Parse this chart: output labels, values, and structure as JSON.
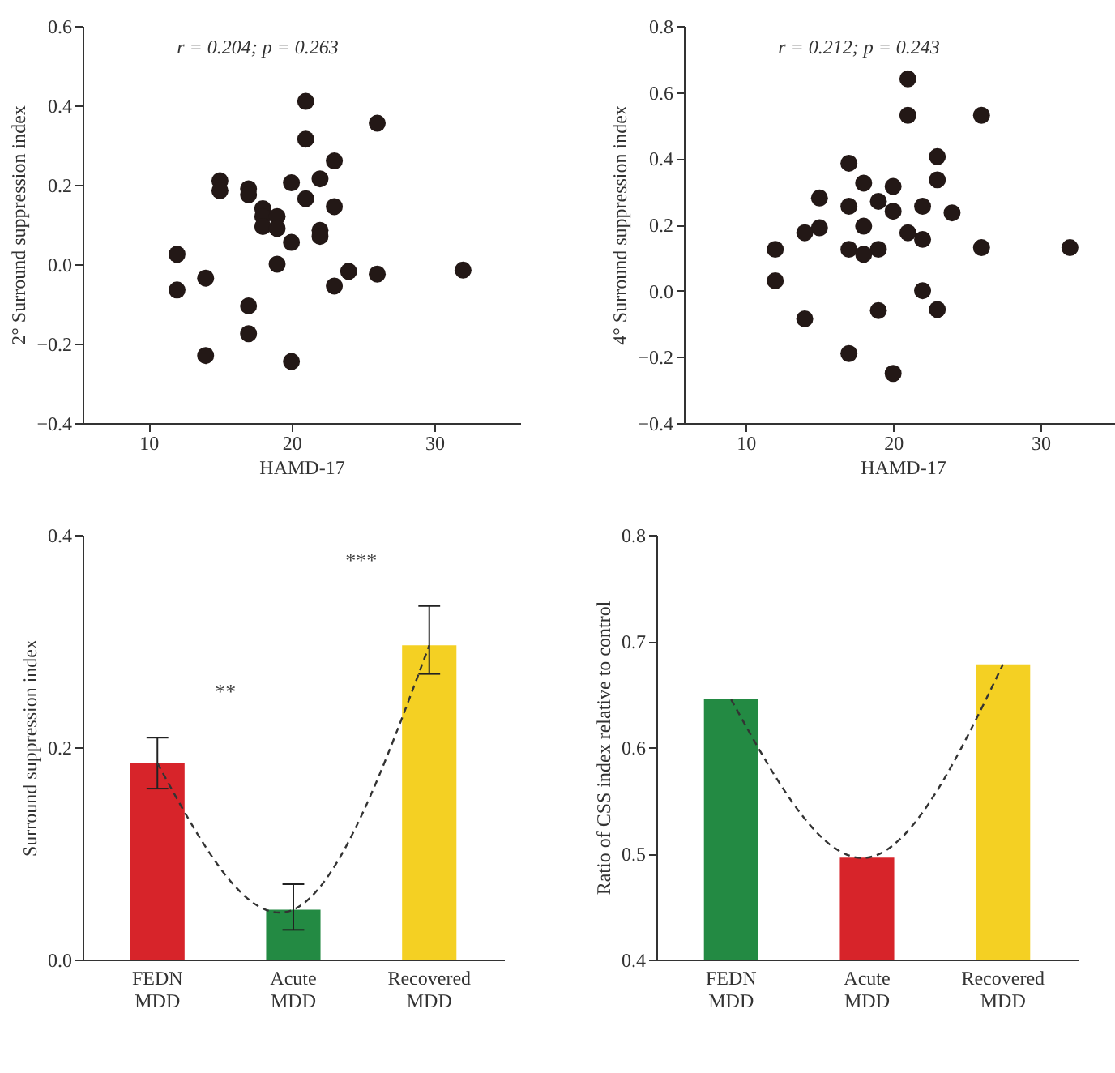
{
  "chart_data": [
    {
      "type": "scatter",
      "xlabel": "HAMD-17",
      "ylabel": "2° Surround suppression index",
      "annotations": [
        "r = 0.204; p = 0.263"
      ],
      "xlim": [
        5.4,
        36
      ],
      "xticks": [
        10,
        20,
        30
      ],
      "ylim": [
        -0.4,
        0.6
      ],
      "yticks": [
        {
          "value": -0.4,
          "label": "−0.4"
        },
        {
          "value": -0.2,
          "label": "−0.2"
        },
        {
          "value": 0,
          "label": "0.0"
        },
        0.2,
        0.4,
        0.6
      ],
      "grid": false,
      "marker": "circle",
      "series": [
        {
          "color": "#231816",
          "x": [
            21,
            26,
            21,
            23,
            22,
            15,
            20,
            15,
            17,
            17,
            21,
            23,
            18,
            18,
            19,
            18,
            19,
            22,
            22,
            20,
            12,
            19,
            24,
            32,
            26,
            14,
            23,
            12,
            17,
            17,
            14,
            20
          ],
          "values": [
            0.41,
            0.355,
            0.315,
            0.26,
            0.215,
            0.21,
            0.205,
            0.185,
            0.19,
            0.175,
            0.165,
            0.145,
            0.14,
            0.12,
            0.12,
            0.095,
            0.09,
            0.085,
            0.07,
            0.055,
            0.025,
            0.0,
            -0.018,
            -0.015,
            -0.025,
            -0.035,
            -0.055,
            -0.065,
            -0.105,
            -0.175,
            -0.23,
            -0.245
          ]
        }
      ]
    },
    {
      "type": "scatter",
      "xlabel": "HAMD-17",
      "ylabel": "4° Surround suppression index",
      "annotations": [
        "r = 0.212; p = 0.243"
      ],
      "xlim": [
        5.8,
        35.5
      ],
      "xticks": [
        10,
        20,
        30
      ],
      "ylim": [
        -0.4,
        0.8
      ],
      "yticks": [
        {
          "value": -0.4,
          "label": "−0.4"
        },
        {
          "value": -0.2,
          "label": "−0.2"
        },
        {
          "value": 0,
          "label": "0.0"
        },
        0.2,
        0.4,
        0.6,
        0.8
      ],
      "grid": false,
      "marker": "circle",
      "series": [
        {
          "color": "#231816",
          "x": [
            21,
            21,
            26,
            23,
            17,
            23,
            18,
            20,
            15,
            19,
            17,
            22,
            20,
            24,
            18,
            15,
            14,
            21,
            22,
            12,
            17,
            19,
            26,
            32,
            18,
            12,
            22,
            19,
            23,
            14,
            17,
            20
          ],
          "values": [
            0.64,
            0.53,
            0.53,
            0.405,
            0.385,
            0.335,
            0.325,
            0.315,
            0.28,
            0.27,
            0.255,
            0.255,
            0.24,
            0.235,
            0.195,
            0.19,
            0.175,
            0.175,
            0.155,
            0.125,
            0.125,
            0.125,
            0.13,
            0.13,
            0.11,
            0.03,
            0.0,
            -0.06,
            -0.057,
            -0.085,
            -0.19,
            -0.25
          ]
        }
      ]
    },
    {
      "type": "bar",
      "ylabel": "Surround suppression index",
      "categories": [
        "FEDN MDD",
        "Acute MDD",
        "Recovered MDD"
      ],
      "ylim": [
        0,
        0.4
      ],
      "yticks": [
        {
          "value": 0,
          "label": "0.0"
        },
        0.2,
        0.4
      ],
      "grid": false,
      "annotations": [
        "**",
        "***"
      ],
      "series": [
        {
          "type": "bar",
          "colors": [
            "#d7242a",
            "#238a43",
            "#f4d023"
          ],
          "values": [
            0.185,
            0.047,
            0.296
          ],
          "errors": [
            [
              0.161,
              0.209
            ],
            [
              0.028,
              0.071
            ],
            [
              0.269,
              0.333
            ]
          ]
        },
        {
          "type": "line",
          "color": "#333333",
          "line_style": "dashed",
          "values": [
            0.185,
            0.047,
            0.296
          ]
        }
      ]
    },
    {
      "type": "bar",
      "ylabel": "Ratio of CSS index relative to control",
      "categories": [
        "FEDN MDD",
        "Acute MDD",
        "Recovered MDD"
      ],
      "ylim": [
        0.4,
        0.8
      ],
      "yticks": [
        0.4,
        0.5,
        0.6,
        0.7,
        0.8
      ],
      "grid": false,
      "series": [
        {
          "type": "bar",
          "colors": [
            "#238a43",
            "#d7242a",
            "#f4d023"
          ],
          "values": [
            0.645,
            0.496,
            0.678
          ]
        },
        {
          "type": "line",
          "color": "#333333",
          "line_style": "dashed",
          "values": [
            0.645,
            0.496,
            0.678
          ]
        }
      ]
    }
  ]
}
